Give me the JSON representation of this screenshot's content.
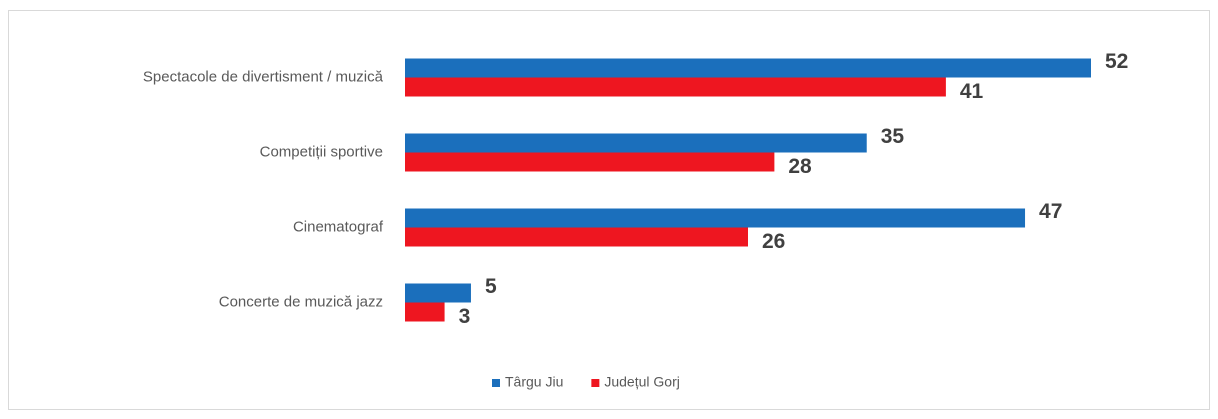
{
  "chart_data": {
    "type": "hbar",
    "categories": [
      "Spectacole de divertisment / muzică",
      "Competiții sportive",
      "Cinematograf",
      "Concerte de muzică jazz"
    ],
    "series": [
      {
        "name": "Târgu Jiu",
        "color": "#1b6fbc",
        "values": [
          52,
          35,
          47,
          5
        ]
      },
      {
        "name": "Județul Gorj",
        "color": "#ee1620",
        "values": [
          41,
          28,
          26,
          3
        ]
      }
    ],
    "legend": "bottom"
  }
}
